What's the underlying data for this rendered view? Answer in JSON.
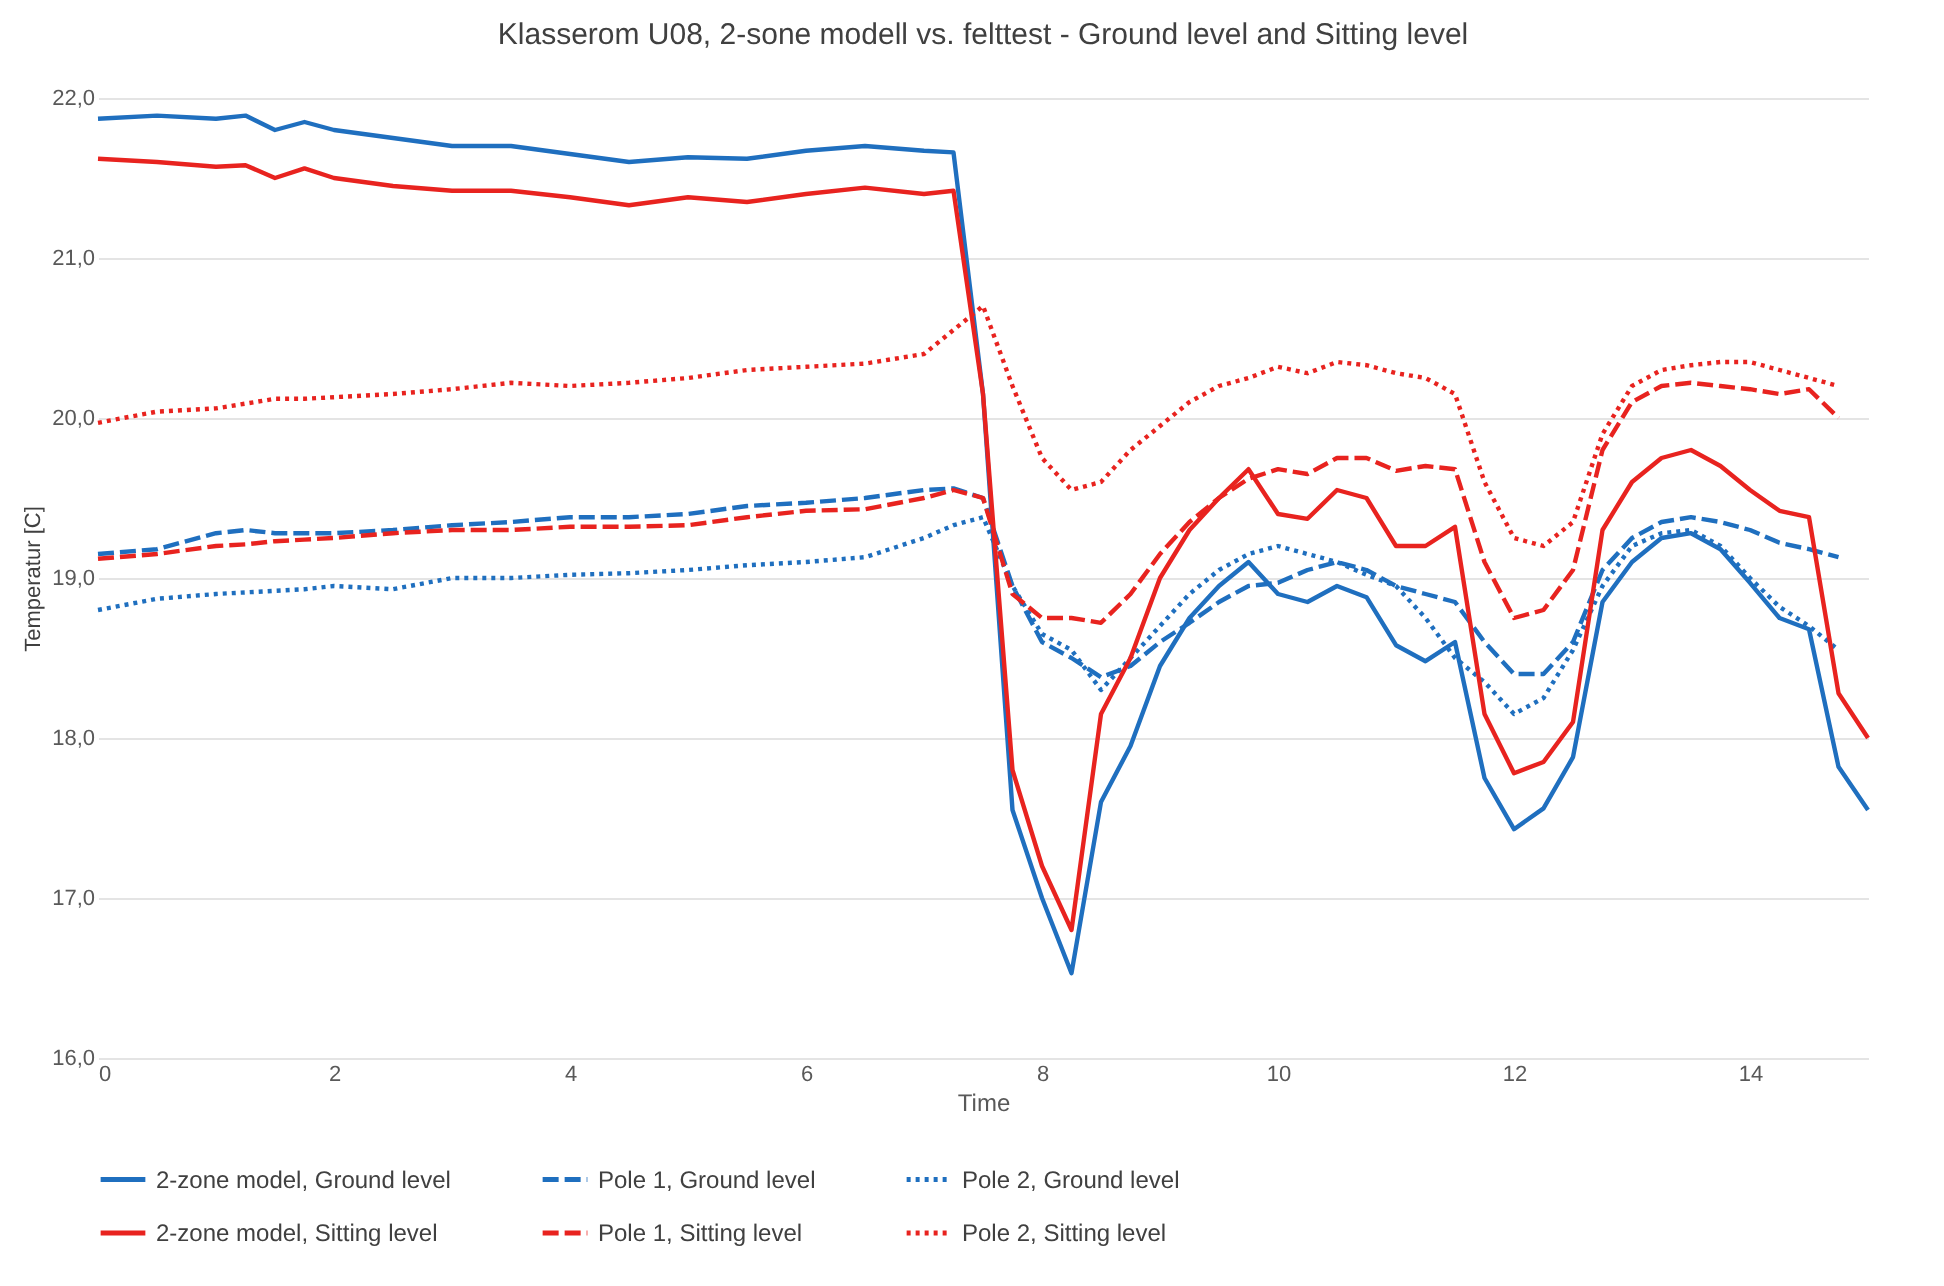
{
  "chart_data": {
    "type": "line",
    "title": "Klasserom U08, 2-sone modell vs. felttest - Ground level and Sitting level",
    "xlabel": "Time",
    "ylabel": "Temperatur [C]",
    "x": [
      0,
      0.5,
      1,
      1.25,
      1.5,
      1.75,
      2,
      2.5,
      3,
      3.5,
      4,
      4.5,
      5,
      5.5,
      6,
      6.5,
      7,
      7.25,
      7.5,
      7.75,
      8,
      8.25,
      8.5,
      8.75,
      9,
      9.25,
      9.5,
      9.75,
      10,
      10.25,
      10.5,
      10.75,
      11,
      11.25,
      11.5,
      11.75,
      12,
      12.25,
      12.5,
      12.75,
      13,
      13.25,
      13.5,
      13.75,
      14,
      14.25,
      14.5,
      14.75,
      15
    ],
    "xlim": [
      0,
      15
    ],
    "xticks": [
      0,
      2,
      4,
      6,
      8,
      10,
      12,
      14
    ],
    "ylim": [
      16,
      22
    ],
    "yticks": [
      {
        "value": 16,
        "label": "16,0"
      },
      {
        "value": 17,
        "label": "17,0"
      },
      {
        "value": 18,
        "label": "18,0"
      },
      {
        "value": 19,
        "label": "19,0"
      },
      {
        "value": 20,
        "label": "20,0"
      },
      {
        "value": 21,
        "label": "21,0"
      },
      {
        "value": 22,
        "label": "22,0"
      }
    ],
    "grid": "y",
    "legend": "bottom",
    "series": [
      {
        "name": "2-zone model, Ground level",
        "color": "#1f6fbf",
        "line_style": "solid",
        "values": [
          21.87,
          21.89,
          21.87,
          21.89,
          21.8,
          21.85,
          21.8,
          21.75,
          21.7,
          21.7,
          21.65,
          21.6,
          21.63,
          21.62,
          21.67,
          21.7,
          21.67,
          21.66,
          20.15,
          17.55,
          17.0,
          16.53,
          17.6,
          17.95,
          18.45,
          18.75,
          18.95,
          19.1,
          18.9,
          18.85,
          18.95,
          18.88,
          18.58,
          18.48,
          18.6,
          17.75,
          17.43,
          17.56,
          17.88,
          18.85,
          19.1,
          19.25,
          19.28,
          19.18,
          18.97,
          18.75,
          18.68,
          17.82,
          17.55
        ]
      },
      {
        "name": "Pole 1, Ground level",
        "color": "#1f6fbf",
        "line_style": "dashed",
        "values": [
          19.15,
          19.18,
          19.28,
          19.3,
          19.28,
          19.28,
          19.28,
          19.3,
          19.33,
          19.35,
          19.38,
          19.38,
          19.4,
          19.45,
          19.47,
          19.5,
          19.55,
          19.56,
          19.5,
          18.95,
          18.6,
          18.5,
          18.38,
          18.45,
          18.6,
          18.72,
          18.85,
          18.95,
          18.97,
          19.05,
          19.1,
          19.05,
          18.95,
          18.9,
          18.85,
          18.6,
          18.4,
          18.4,
          18.6,
          19.05,
          19.25,
          19.35,
          19.38,
          19.35,
          19.3,
          19.22,
          19.18,
          19.13,
          null
        ]
      },
      {
        "name": "Pole 2, Ground level",
        "color": "#1f6fbf",
        "line_style": "dotted",
        "values": [
          18.8,
          18.87,
          18.9,
          18.91,
          18.92,
          18.93,
          18.95,
          18.93,
          19.0,
          19.0,
          19.02,
          19.03,
          19.05,
          19.08,
          19.1,
          19.13,
          19.25,
          19.33,
          19.38,
          18.95,
          18.65,
          18.55,
          18.3,
          18.5,
          18.7,
          18.9,
          19.05,
          19.15,
          19.2,
          19.15,
          19.1,
          19.02,
          18.95,
          18.75,
          18.5,
          18.35,
          18.15,
          18.25,
          18.55,
          18.95,
          19.2,
          19.28,
          19.3,
          19.2,
          19.0,
          18.82,
          18.7,
          18.55,
          null
        ]
      },
      {
        "name": "2-zone model, Sitting level",
        "color": "#e8231f",
        "line_style": "solid",
        "values": [
          21.62,
          21.6,
          21.57,
          21.58,
          21.5,
          21.56,
          21.5,
          21.45,
          21.42,
          21.42,
          21.38,
          21.33,
          21.38,
          21.35,
          21.4,
          21.44,
          21.4,
          21.42,
          20.15,
          17.8,
          17.2,
          16.8,
          18.15,
          18.5,
          19.0,
          19.3,
          19.5,
          19.68,
          19.4,
          19.37,
          19.55,
          19.5,
          19.2,
          19.2,
          19.32,
          18.15,
          17.78,
          17.85,
          18.1,
          19.3,
          19.6,
          19.75,
          19.8,
          19.7,
          19.55,
          19.42,
          19.38,
          18.28,
          18.0
        ]
      },
      {
        "name": "Pole 1, Sitting level",
        "color": "#e8231f",
        "line_style": "dashed",
        "values": [
          19.12,
          19.15,
          19.2,
          19.21,
          19.23,
          19.24,
          19.25,
          19.28,
          19.3,
          19.3,
          19.32,
          19.32,
          19.33,
          19.38,
          19.42,
          19.43,
          19.5,
          19.55,
          19.5,
          18.9,
          18.75,
          18.75,
          18.72,
          18.9,
          19.15,
          19.35,
          19.5,
          19.62,
          19.68,
          19.65,
          19.75,
          19.75,
          19.67,
          19.7,
          19.68,
          19.1,
          18.75,
          18.8,
          19.05,
          19.8,
          20.1,
          20.2,
          20.22,
          20.2,
          20.18,
          20.15,
          20.18,
          20.0,
          null
        ]
      },
      {
        "name": "Pole 2, Sitting level",
        "color": "#e8231f",
        "line_style": "dotted",
        "values": [
          19.97,
          20.04,
          20.06,
          20.09,
          20.12,
          20.12,
          20.13,
          20.15,
          20.18,
          20.22,
          20.2,
          20.22,
          20.25,
          20.3,
          20.32,
          20.34,
          20.4,
          20.55,
          20.7,
          20.2,
          19.75,
          19.55,
          19.6,
          19.8,
          19.95,
          20.1,
          20.2,
          20.25,
          20.32,
          20.28,
          20.35,
          20.33,
          20.28,
          20.25,
          20.15,
          19.6,
          19.25,
          19.2,
          19.35,
          19.9,
          20.2,
          20.3,
          20.33,
          20.35,
          20.35,
          20.3,
          20.25,
          20.2,
          null
        ]
      }
    ]
  }
}
